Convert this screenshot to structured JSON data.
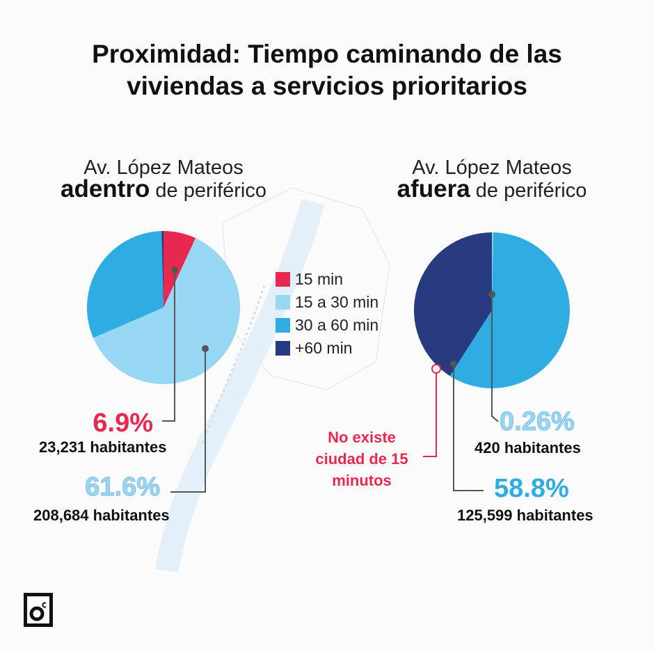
{
  "title": "Proximidad: Tiempo caminando de las viviendas a servicios prioritarios",
  "title_lines": [
    "Proximidad: Tiempo caminando de las",
    "viviendas a servicios prioritarios"
  ],
  "colors": {
    "15 min": "#e8294f",
    "15 a 30 min": "#98d7f4",
    "30 a 60 min": "#2fade3",
    "+60 min": "#283a80",
    "leader": "#555555",
    "note": "#e8294f"
  },
  "chart_data": [
    {
      "type": "pie",
      "title": "Av. López Mateos adentro de periférico",
      "subtitle_line1": "Av. López Mateos",
      "subtitle_bold": "adentro",
      "subtitle_rest": "de periférico",
      "slices": [
        {
          "label": "15 min",
          "value": 6.9
        },
        {
          "label": "15 a 30 min",
          "value": 61.6
        },
        {
          "label": "30 a 60 min",
          "value": 31.1
        },
        {
          "label": "+60 min",
          "value": 0.4
        }
      ],
      "annotations": [
        {
          "slice": "15 min",
          "pct_text": "6.9%",
          "habitantes": "23,231 habitantes"
        },
        {
          "slice": "15 a 30 min",
          "pct_text": "61.6%",
          "habitantes": "208,684 habitantes"
        }
      ]
    },
    {
      "type": "pie",
      "title": "Av. López Mateos afuera de periférico",
      "subtitle_line1": "Av. López Mateos",
      "subtitle_bold": "afuera",
      "subtitle_rest": "de periférico",
      "slices": [
        {
          "label": "15 min",
          "value": 0
        },
        {
          "label": "15 a 30 min",
          "value": 0.26
        },
        {
          "label": "30 a 60 min",
          "value": 58.8
        },
        {
          "label": "+60 min",
          "value": 40.94
        }
      ],
      "annotations": [
        {
          "slice": "15 a 30 min",
          "pct_text": "0.26%",
          "habitantes": "420 habitantes"
        },
        {
          "slice": "30 a 60 min",
          "pct_text": "58.8%",
          "habitantes": "125,599 habitantes"
        }
      ],
      "note": "No existe ciudad de 15 minutos",
      "note_lines": [
        "No existe",
        "ciudad de 15",
        "minutos"
      ]
    }
  ],
  "legend": [
    "15 min",
    "15 a 30 min",
    "30 a 60 min",
    "+60 min"
  ],
  "logo": {
    "main": "o",
    "superscript": "c"
  }
}
